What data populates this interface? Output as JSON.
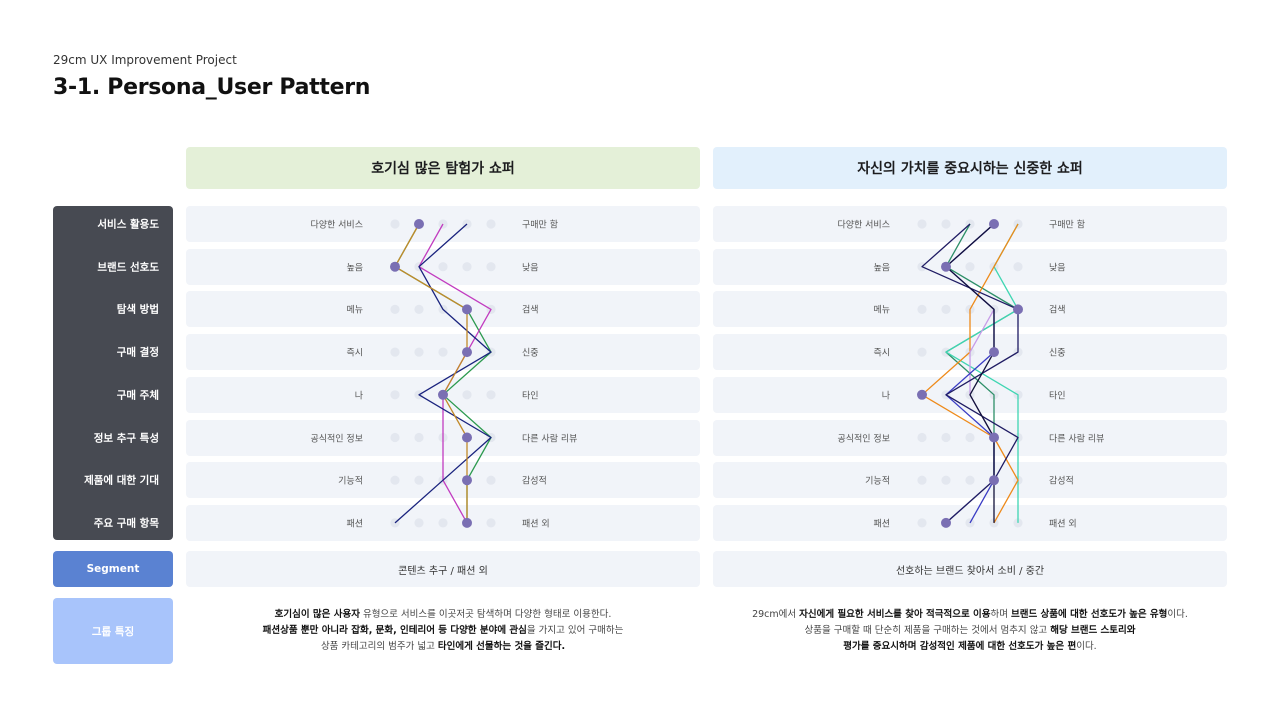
{
  "header": {
    "project": "29cm UX Improvement Project",
    "title": "3-1. Persona_User Pattern"
  },
  "personas": [
    {
      "name": "호기심 많은 탐험가 쇼퍼",
      "header_color": "#e4f0d8"
    },
    {
      "name": "자신의 가치를 중요시하는 신중한 쇼퍼",
      "header_color": "#e2f0fc"
    }
  ],
  "rows": [
    {
      "label": "서비스 활용도",
      "left_pole": "다양한 서비스",
      "right_pole": "구매만 함"
    },
    {
      "label": "브랜드 선호도",
      "left_pole": "높음",
      "right_pole": "낮음"
    },
    {
      "label": "탐색 방법",
      "left_pole": "메뉴",
      "right_pole": "검색"
    },
    {
      "label": "구매 결정",
      "left_pole": "즉시",
      "right_pole": "신중"
    },
    {
      "label": "구매 주체",
      "left_pole": "나",
      "right_pole": "타인"
    },
    {
      "label": "정보 추구 특성",
      "left_pole": "공식적인 정보",
      "right_pole": "다른 사람 리뷰"
    },
    {
      "label": "제품에 대한 기대",
      "left_pole": "기능적",
      "right_pole": "감성적"
    },
    {
      "label": "주요 구매 항목",
      "left_pole": "패션",
      "right_pole": "패션 외"
    }
  ],
  "segment": {
    "label": "Segment",
    "values": [
      "콘텐츠 추구 / 패션 외",
      "선호하는 브랜드 찾아서 소비 / 중간"
    ]
  },
  "group": {
    "label": "그룹 특징",
    "left": [
      [
        {
          "t": "호기심이 많은 사용자",
          "b": true
        },
        {
          "t": " 유형으로 서비스를 이곳저곳 탐색하며 다양한 형태로 이용한다.",
          "b": false
        }
      ],
      [
        {
          "t": "패션상품 뿐만 아니라 잡화, 문화, 인테리어 등 다양한 분야에 관심",
          "b": true
        },
        {
          "t": "을 가지고 있어 구매하는",
          "b": false
        }
      ],
      [
        {
          "t": "상품 카테고리의 범주가 넓고 ",
          "b": false
        },
        {
          "t": "타인에게 선물하는 것을 즐긴다.",
          "b": true
        }
      ]
    ],
    "right": [
      [
        {
          "t": "29cm에서 ",
          "b": false
        },
        {
          "t": "자신에게 필요한 서비스를 찾아 적극적으로 이용",
          "b": true
        },
        {
          "t": "하며 ",
          "b": false
        },
        {
          "t": "브랜드 상품에 대한 선호도가 높은 유형",
          "b": true
        },
        {
          "t": "이다.",
          "b": false
        }
      ],
      [
        {
          "t": "상품을 구매할 때 단순히 제품을 구매하는 것에서 멈추지 않고 ",
          "b": false
        },
        {
          "t": "해당 브랜드 스토리와",
          "b": true
        }
      ],
      [
        {
          "t": "평가를 중요시하며 감성적인 제품에 대한 선호도가 높은 편",
          "b": true
        },
        {
          "t": "이다.",
          "b": false
        }
      ]
    ]
  },
  "chart_data": {
    "type": "line",
    "scale_points": 5,
    "categories": [
      "서비스 활용도",
      "브랜드 선호도",
      "탐색 방법",
      "구매 결정",
      "구매 주체",
      "정보 추구 특성",
      "제품에 대한 기대",
      "주요 구매 항목"
    ],
    "panels": [
      {
        "persona": "호기심 많은 탐험가 쇼퍼",
        "persona_values": [
          2,
          1,
          4,
          4,
          3,
          4,
          4,
          4
        ],
        "series": [
          {
            "color": "#2c9a4e",
            "values": [
              2,
              1,
              4,
              5,
              3,
              5,
              4,
              4
            ]
          },
          {
            "color": "#c23cc0",
            "values": [
              3,
              2,
              5,
              4,
              3,
              3,
              3,
              4
            ]
          },
          {
            "color": "#1a237e",
            "values": [
              4,
              2,
              3,
              5,
              2,
              5,
              3,
              1
            ]
          },
          {
            "color": "#c28a2a",
            "values": [
              2,
              1,
              4,
              4,
              3,
              4,
              4,
              4
            ]
          }
        ]
      },
      {
        "persona": "자신의 가치를 중요시하는 신중한 쇼퍼",
        "persona_values": [
          4,
          2,
          5,
          4,
          1,
          4,
          4,
          2
        ],
        "series": [
          {
            "color": "#2d8f68",
            "values": [
              3,
              2,
              5,
              2,
              4,
              4,
              4,
              2
            ]
          },
          {
            "color": "#3fd6b2",
            "values": [
              5,
              4,
              5,
              2,
              5,
              5,
              5,
              5
            ]
          },
          {
            "color": "#ee8a1a",
            "values": [
              5,
              4,
              3,
              3,
              1,
              4,
              5,
              4
            ]
          },
          {
            "color": "#c79ce8",
            "values": [
              4,
              2,
              4,
              3,
              3,
              4,
              4,
              2
            ]
          },
          {
            "color": "#3a3cc4",
            "values": [
              4,
              2,
              4,
              4,
              2,
              4,
              4,
              3
            ]
          },
          {
            "color": "#1f1b63",
            "values": [
              3,
              1,
              5,
              5,
              2,
              5,
              4,
              2
            ]
          },
          {
            "color": "#12123a",
            "values": [
              4,
              2,
              4,
              4,
              3,
              4,
              4,
              4
            ]
          }
        ]
      }
    ],
    "persona_dot_color": "#7a6fb3",
    "grid_dot_color": "#e3e7ef"
  }
}
